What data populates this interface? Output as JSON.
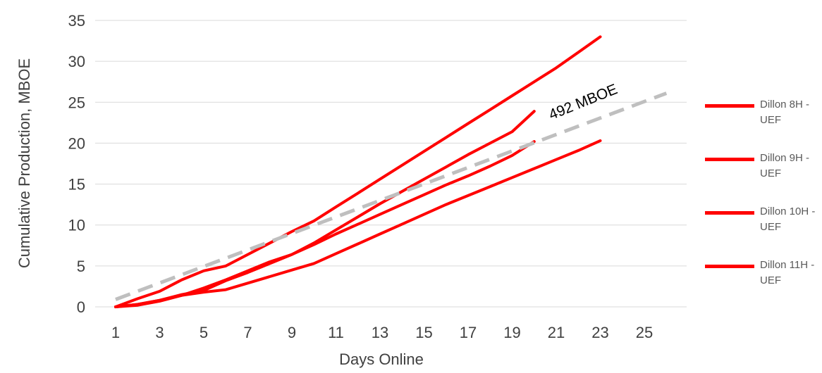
{
  "colors": {
    "series": "#ff0000",
    "reference": "#bfbfbf",
    "grid": "#d9d9d9",
    "text": "#404040"
  },
  "chart_data": {
    "type": "line",
    "title": "",
    "xlabel": "Days Online",
    "ylabel": "Cumulative Production, MBOE",
    "xlim": [
      1,
      26
    ],
    "ylim": [
      0,
      35
    ],
    "x_ticks": [
      "1",
      "3",
      "5",
      "7",
      "9",
      "11",
      "13",
      "15",
      "17",
      "19",
      "21",
      "23",
      "25"
    ],
    "y_ticks": [
      "0",
      "5",
      "10",
      "15",
      "20",
      "25",
      "30",
      "35"
    ],
    "grid": "horizontal",
    "legend_position": "right",
    "series": [
      {
        "name": "Dillon 8H - UEF",
        "style": "solid",
        "x": [
          1,
          2,
          3,
          4,
          5,
          6,
          7,
          8,
          9,
          10,
          11,
          12,
          13,
          14,
          15,
          16,
          17,
          18,
          19,
          20,
          21,
          22,
          23
        ],
        "y": [
          0,
          1,
          1.9,
          3.3,
          4.4,
          5,
          6.4,
          7.8,
          9.2,
          10.5,
          12.2,
          13.9,
          15.6,
          17.3,
          19,
          20.7,
          22.4,
          24.1,
          25.8,
          27.5,
          29.2,
          31.1,
          33
        ]
      },
      {
        "name": "Dillon 9H - UEF",
        "style": "solid",
        "x": [
          1,
          2,
          3,
          4,
          5,
          6,
          7,
          8,
          9,
          10,
          11,
          12,
          13,
          14,
          15,
          16,
          17,
          18,
          19,
          20
        ],
        "y": [
          0,
          0.3,
          0.8,
          1.4,
          2.3,
          3.3,
          4.4,
          5.5,
          6.4,
          7.8,
          9.4,
          11,
          12.6,
          14.1,
          15.6,
          17.1,
          18.6,
          20,
          21.4,
          23.9
        ]
      },
      {
        "name": "Dillon 10H - UEF",
        "style": "solid",
        "x": [
          1,
          2,
          3,
          4,
          5,
          6,
          7,
          8,
          9,
          10,
          11,
          12,
          13,
          14,
          15,
          16,
          17,
          18,
          19,
          20
        ],
        "y": [
          0,
          0.3,
          0.8,
          1.5,
          2,
          3.2,
          4.2,
          5.3,
          6.4,
          7.6,
          8.9,
          10.1,
          11.3,
          12.5,
          13.7,
          14.9,
          16,
          17.2,
          18.5,
          20.2
        ]
      },
      {
        "name": "Dillon 11H - UEF",
        "style": "solid",
        "x": [
          1,
          2,
          3,
          4,
          5,
          6,
          7,
          8,
          9,
          10,
          11,
          12,
          13,
          14,
          15,
          16,
          17,
          18,
          19,
          20,
          21,
          22,
          23
        ],
        "y": [
          0,
          0.2,
          0.7,
          1.4,
          1.8,
          2.1,
          2.9,
          3.7,
          4.5,
          5.3,
          6.5,
          7.7,
          8.9,
          10.1,
          11.3,
          12.5,
          13.6,
          14.7,
          15.8,
          16.9,
          18,
          19.1,
          20.3
        ]
      },
      {
        "style": "dashed",
        "x": [
          1,
          26
        ],
        "y": [
          0.9,
          26.1
        ]
      }
    ],
    "annotations": [
      {
        "text": "492 MBOE",
        "x": 22.3,
        "y": 24.5
      }
    ]
  }
}
